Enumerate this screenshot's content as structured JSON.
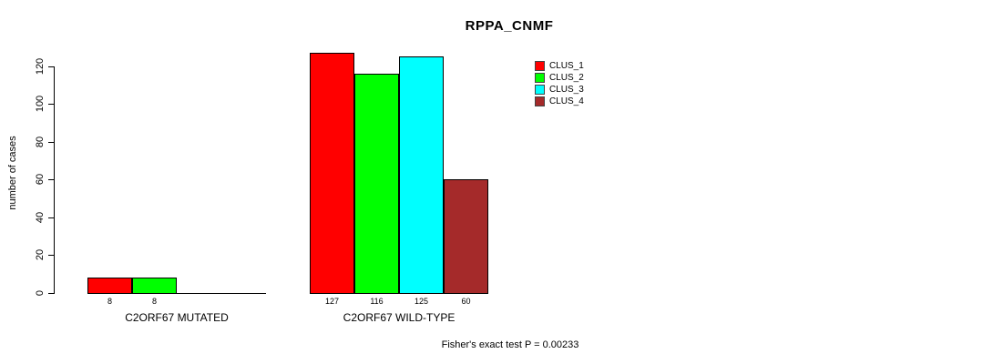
{
  "title": "RPPA_CNMF",
  "ylabel": "number of cases",
  "footer": "Fisher's exact test P = 0.00233",
  "chart_data": {
    "type": "bar",
    "title": "RPPA_CNMF",
    "xlabel": "",
    "ylabel": "number of cases",
    "categories": [
      "C2ORF67 MUTATED",
      "C2ORF67 WILD-TYPE"
    ],
    "series": [
      {
        "name": "CLUS_1",
        "color": "#FF0000",
        "values": [
          8,
          127
        ]
      },
      {
        "name": "CLUS_2",
        "color": "#00FF00",
        "values": [
          8,
          116
        ]
      },
      {
        "name": "CLUS_3",
        "color": "#00FFFF",
        "values": [
          0,
          125
        ]
      },
      {
        "name": "CLUS_4",
        "color": "#A52A2A",
        "values": [
          0,
          60
        ]
      }
    ],
    "yticks": [
      0,
      20,
      40,
      60,
      80,
      100,
      120
    ],
    "ylim": [
      0,
      127
    ],
    "grid": false,
    "legend_position": "top-right",
    "bar_border_color": "#000000",
    "annotation": "Fisher's exact test P = 0.00233"
  }
}
